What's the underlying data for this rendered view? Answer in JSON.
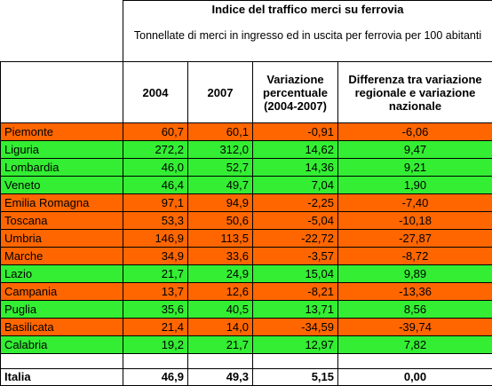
{
  "title": "Indice del traffico merci su ferrovia",
  "subtitle": "Tonnellate di merci in ingresso ed in uscita per ferrovia per 100 abitanti",
  "columns": {
    "y2004": "2004",
    "y2007": "2007",
    "variation": "Variazione percentuale (2004-2007)",
    "difference": "Differenza tra variazione regionale e variazione nazionale"
  },
  "colors": {
    "negative": "#ff6600",
    "positive": "#33ee33"
  },
  "rows": [
    {
      "region": "Piemonte",
      "v2004": "60,7",
      "v2007": "60,1",
      "variation": "-0,91",
      "difference": "-6,06",
      "status": "negative"
    },
    {
      "region": "Liguria",
      "v2004": "272,2",
      "v2007": "312,0",
      "variation": "14,62",
      "difference": "9,47",
      "status": "positive"
    },
    {
      "region": "Lombardia",
      "v2004": "46,0",
      "v2007": "52,7",
      "variation": "14,36",
      "difference": "9,21",
      "status": "positive"
    },
    {
      "region": "Veneto",
      "v2004": "46,4",
      "v2007": "49,7",
      "variation": "7,04",
      "difference": "1,90",
      "status": "positive"
    },
    {
      "region": "Emilia Romagna",
      "v2004": "97,1",
      "v2007": "94,9",
      "variation": "-2,25",
      "difference": "-7,40",
      "status": "negative"
    },
    {
      "region": "Toscana",
      "v2004": "53,3",
      "v2007": "50,6",
      "variation": "-5,04",
      "difference": "-10,18",
      "status": "negative"
    },
    {
      "region": "Umbria",
      "v2004": "146,9",
      "v2007": "113,5",
      "variation": "-22,72",
      "difference": "-27,87",
      "status": "negative"
    },
    {
      "region": "Marche",
      "v2004": "34,9",
      "v2007": "33,6",
      "variation": "-3,57",
      "difference": "-8,72",
      "status": "negative"
    },
    {
      "region": "Lazio",
      "v2004": "21,7",
      "v2007": "24,9",
      "variation": "15,04",
      "difference": "9,89",
      "status": "positive"
    },
    {
      "region": "Campania",
      "v2004": "13,7",
      "v2007": "12,6",
      "variation": "-8,21",
      "difference": "-13,36",
      "status": "negative"
    },
    {
      "region": "Puglia",
      "v2004": "35,6",
      "v2007": "40,5",
      "variation": "13,71",
      "difference": "8,56",
      "status": "positive"
    },
    {
      "region": "Basilicata",
      "v2004": "21,4",
      "v2007": "14,0",
      "variation": "-34,59",
      "difference": "-39,74",
      "status": "negative"
    },
    {
      "region": "Calabria",
      "v2004": "19,2",
      "v2007": "21,7",
      "variation": "12,97",
      "difference": "7,82",
      "status": "positive"
    }
  ],
  "total": {
    "region": "Italia",
    "v2004": "46,9",
    "v2007": "49,3",
    "variation": "5,15",
    "difference": "0,00"
  }
}
